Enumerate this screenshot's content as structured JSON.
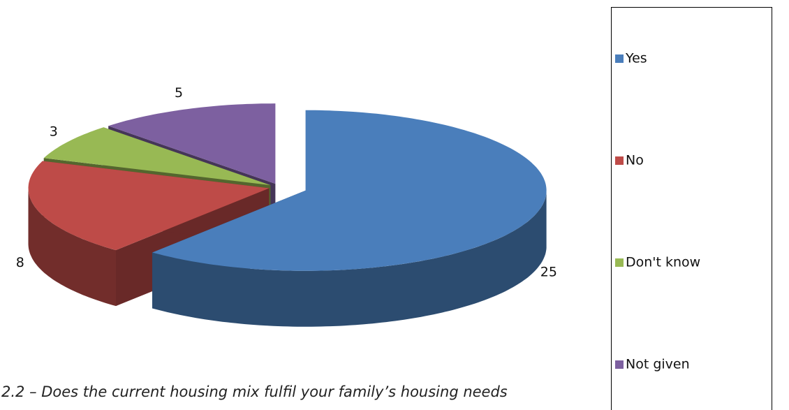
{
  "chart_data": {
    "type": "pie3d",
    "caption": "2.2 – Does the current housing mix fulfil your family’s housing needs",
    "categories": [
      "Yes",
      "No",
      "Don't know",
      "Not given"
    ],
    "values": [
      25,
      8,
      3,
      5
    ],
    "colors": [
      "#4a7ebb",
      "#be4b48",
      "#98b954",
      "#7d60a0"
    ],
    "legend": "right"
  }
}
